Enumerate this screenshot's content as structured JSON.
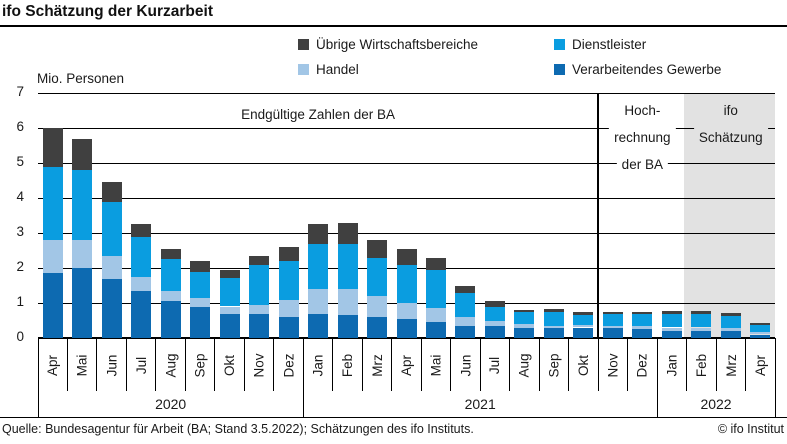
{
  "header": {
    "title": "ifo Schätzung der Kurzarbeit"
  },
  "footer": {
    "source": "Quelle: Bundesagentur für Arbeit (BA; Stand 3.5.2022); Schätzungen des ifo Instituts.",
    "copyright": "© ifo Institut"
  },
  "chart_data": {
    "type": "bar",
    "stacked": true,
    "unit_label": "Mio. Personen",
    "ylim": [
      0,
      7
    ],
    "yticks": [
      0,
      1,
      2,
      3,
      4,
      5,
      6,
      7
    ],
    "grid": true,
    "categories": [
      "Apr",
      "Mai",
      "Jun",
      "Jul",
      "Aug",
      "Sep",
      "Okt",
      "Nov",
      "Dez",
      "Jan",
      "Feb",
      "Mrz",
      "Apr",
      "Mai",
      "Jun",
      "Jul",
      "Aug",
      "Sep",
      "Okt",
      "Nov",
      "Dez",
      "Jan",
      "Feb",
      "Mrz",
      "Apr"
    ],
    "year_groups": [
      {
        "label": "2020",
        "count": 9
      },
      {
        "label": "2021",
        "count": 12
      },
      {
        "label": "2022",
        "count": 4
      }
    ],
    "series": [
      {
        "name": "Verarbeitendes Gewerbe",
        "color": "#0d6ab1",
        "values": [
          1.85,
          2.0,
          1.7,
          1.35,
          1.05,
          0.9,
          0.7,
          0.7,
          0.6,
          0.7,
          0.65,
          0.6,
          0.55,
          0.45,
          0.35,
          0.35,
          0.3,
          0.28,
          0.3,
          0.28,
          0.27,
          0.21,
          0.21,
          0.2,
          0.1
        ]
      },
      {
        "name": "Handel",
        "color": "#a2c6e6",
        "values": [
          0.95,
          0.8,
          0.65,
          0.4,
          0.3,
          0.25,
          0.2,
          0.25,
          0.5,
          0.7,
          0.75,
          0.6,
          0.45,
          0.4,
          0.25,
          0.15,
          0.1,
          0.07,
          0.06,
          0.07,
          0.08,
          0.09,
          0.09,
          0.08,
          0.06
        ]
      },
      {
        "name": "Dienstleister",
        "color": "#0a9de0",
        "values": [
          2.1,
          2.0,
          1.55,
          1.15,
          0.9,
          0.75,
          0.82,
          1.15,
          1.1,
          1.3,
          1.3,
          1.1,
          1.1,
          1.1,
          0.7,
          0.4,
          0.33,
          0.4,
          0.31,
          0.33,
          0.33,
          0.38,
          0.38,
          0.35,
          0.22
        ]
      },
      {
        "name": "Übrige Wirtschaftsbereiche",
        "color": "#404040",
        "values": [
          1.1,
          0.9,
          0.55,
          0.35,
          0.3,
          0.3,
          0.23,
          0.25,
          0.4,
          0.55,
          0.6,
          0.5,
          0.45,
          0.35,
          0.2,
          0.15,
          0.07,
          0.08,
          0.06,
          0.07,
          0.07,
          0.1,
          0.1,
          0.08,
          0.04
        ]
      }
    ],
    "legend": [
      {
        "label": "Übrige Wirtschaftsbereiche",
        "color": "#404040"
      },
      {
        "label": "Dienstleister",
        "color": "#0a9de0"
      },
      {
        "label": "Handel",
        "color": "#a2c6e6"
      },
      {
        "label": "Verarbeitendes Gewerbe",
        "color": "#0d6ab1"
      }
    ],
    "sections": [
      {
        "lines": [
          "Endgültige Zahlen der BA"
        ],
        "from_index": 0,
        "to_index": 19,
        "background": "#ffffff"
      },
      {
        "lines": [
          "Hoch-",
          "rechnung",
          "der BA"
        ],
        "from_index": 19,
        "to_index": 22,
        "background": "#ffffff"
      },
      {
        "lines": [
          "ifo",
          "Schätzung"
        ],
        "from_index": 22,
        "to_index": 25,
        "background": "#e2e2e2",
        "shaded": true
      }
    ],
    "shaded_band_color": "#e2e2e2"
  }
}
